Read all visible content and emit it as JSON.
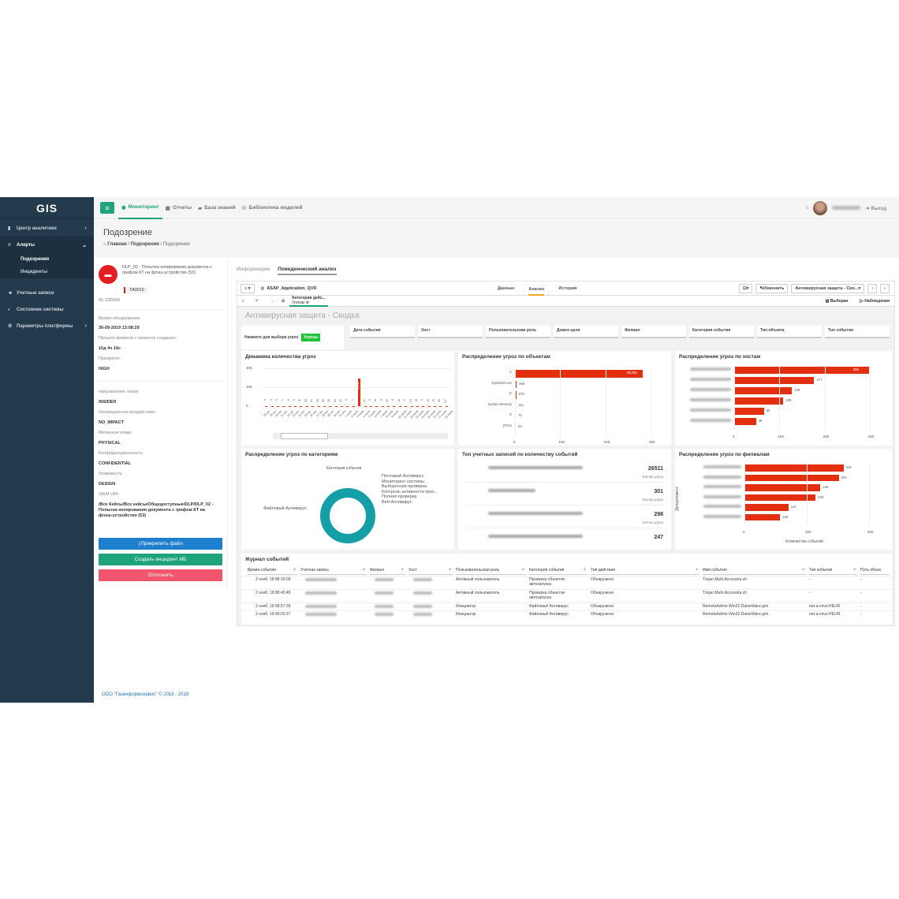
{
  "logo": "GIS",
  "sidebar": {
    "items": [
      {
        "label": "Центр аналитики",
        "icon": "bar-chart-icon"
      },
      {
        "label": "Алерты",
        "icon": "list-icon"
      },
      {
        "label": "Подозрения"
      },
      {
        "label": "Инциденты"
      },
      {
        "label": "Учетные записи",
        "icon": "users-icon"
      },
      {
        "label": "Состояние системы",
        "icon": "dashboard-icon"
      },
      {
        "label": "Параметры платформы",
        "icon": "cogs-icon"
      }
    ]
  },
  "topnav": {
    "items": [
      "Мониторинг",
      "Отчеты",
      "База знаний",
      "Библиотека моделей"
    ],
    "logout": "Выход"
  },
  "page": {
    "title": "Подозрение",
    "crumbs": [
      "Главная",
      "Подозрения",
      "Подозрение"
    ]
  },
  "alert": {
    "title": "DLP_02 - Попытка копирования документа с грифом КТ на флэш-устройство (53)",
    "tag": "TA0010",
    "id": "ID: 230034",
    "detect_label": "Время обнаружения:",
    "detect_value": "30-09-2019 13:08:29",
    "elapsed_label": "Прошло времени с момента создания:",
    "elapsed_value": "10д 4ч 16с",
    "priority_label": "Приоритет:",
    "priority_value": "HIGH",
    "direction_label": "Направление атаки:",
    "direction_value": "INSIDER",
    "impact_label": "Операционное воздействие:",
    "impact_value": "NO_IMPACT",
    "mechanism_label": "Механизм атаки:",
    "mechanism_value": "PHYSICAL",
    "conf_label": "Конфиденциальность:",
    "conf_value": "CONFIDENTIAL",
    "vuln_label": "Уязвимость:",
    "vuln_value": "DESIGN",
    "siem_label": "SIEM URI:",
    "siem_value": "/Все Кейсы/Все кейсы/Общедоступные/DLP/DLP_02 - Попытка копирования документа с грифом КТ на флэш-устройство (53)",
    "btn_attach": "Прикрепить файл",
    "btn_create": "Создать инцидент ИБ",
    "btn_reject": "Отклонить"
  },
  "tabs": {
    "info": "Информация",
    "behav": "Поведенческий анализ"
  },
  "qlik": {
    "app": "ASAP_Application_QVD",
    "tabs": [
      "Данные",
      "Анализ",
      "История"
    ],
    "edit": "Изменить",
    "sheet_select": "Антивирусная защита - Сво...",
    "selections": "Выборки",
    "insights": "Наблюдения",
    "sel_title": "Категория дейс...",
    "sel_sub": "Угрозы",
    "sheet_title": "Антивирусная защита - Сводка",
    "threat_btn_label": "Нажмите для выбора угроз",
    "threat_btn": "Угрозы",
    "filters": [
      "Дата события",
      "Хост",
      "Пользовательская роль",
      "Домен цели",
      "Филиал",
      "Категория события",
      "Тип объекта",
      "Тип события"
    ]
  },
  "chart_data": [
    {
      "type": "bar",
      "title": "Динамика количества угроз",
      "yticks": [
        "40K",
        "20K",
        "0"
      ],
      "ylim": [
        0,
        40000
      ],
      "categories": [
        "18 окт.",
        "19 окт.",
        "20 окт.",
        "21 окт.",
        "22 окт.",
        "23 окт.",
        "24 окт.",
        "25 окт.",
        "26 окт.",
        "27 окт.",
        "28 окт.",
        "29 окт.",
        "30 окт.",
        "31 окт.",
        "1 нояб.",
        "2 нояб.",
        "3 нояб.",
        "4 нояб.",
        "5 нояб.",
        "6 нояб.",
        "7 нояб.",
        "8 нояб.",
        "9 нояб.",
        "10 нояб.",
        "11 нояб.",
        "12 нояб.",
        "13 нояб.",
        "14 нояб.",
        "15 нояб.",
        "16 нояб.",
        "17 нояб.",
        "18 нояб."
      ],
      "values": [
        0,
        3,
        0,
        1,
        6,
        0,
        10,
        30,
        41,
        20,
        35,
        35,
        50,
        20,
        0,
        1,
        29110,
        41,
        0,
        16,
        0,
        52,
        0,
        18,
        0,
        174,
        13,
        0,
        44,
        75,
        66,
        117
      ],
      "labels": [
        "0",
        "3",
        "0",
        "1",
        "6",
        "0",
        "10",
        "30",
        "41",
        "20",
        "35",
        "35",
        "50",
        "20",
        "0",
        "1",
        "29110",
        "41",
        "0",
        "16",
        "0",
        "52",
        "0",
        "18",
        "0",
        "174",
        "13",
        "0",
        "44",
        "75",
        "66",
        "117"
      ]
    },
    {
      "type": "bar",
      "title": "Распределение угроз по объектам",
      "orientation": "horizontal",
      "categories": [
        "C",
        "Symlinks\\.exe",
        "E",
        "System Memory",
        "E",
        "[From"
      ],
      "values": [
        28236,
        368,
        279,
        211,
        73,
        22
      ],
      "labels": [
        "28,236",
        "368",
        "279",
        "211",
        "73",
        "22"
      ],
      "xticks": [
        "0",
        "10K",
        "20K",
        "30K"
      ],
      "xlim": [
        0,
        30000
      ]
    },
    {
      "type": "bar",
      "title": "Распределение угроз по хостам",
      "orientation": "horizontal",
      "values": [
        298,
        177,
        128,
        109,
        66,
        48
      ],
      "labels": [
        "298",
        "177",
        "128",
        "109",
        "66",
        "48"
      ],
      "xticks": [
        "0",
        "100",
        "200",
        "300"
      ],
      "xlim": [
        0,
        300
      ]
    },
    {
      "type": "pie",
      "title": "Распределение угроз по категориям",
      "legend_title": "Категория события",
      "categories": [
        "Почтовый Антивирус",
        "Мониторинг системы",
        "Выборочная проверка",
        "Контроль активности прог...",
        "Полная проверка",
        "Веб-Антивирус",
        "Файловый Антивирус"
      ]
    },
    {
      "type": "table",
      "title": "Топ учетных записей по количеству событий",
      "values": [
        "26511",
        "301",
        "298",
        "247"
      ],
      "sub": "Кол-во угроз"
    },
    {
      "type": "bar",
      "title": "Распределение угроз по филиалам",
      "orientation": "horizontal",
      "values": [
        318,
        303,
        244,
        228,
        141,
        115
      ],
      "labels": [
        "318",
        "303",
        "244",
        "228",
        "141",
        "115"
      ],
      "xticks": [
        "0",
        "200",
        "400"
      ],
      "xlim": [
        0,
        400
      ],
      "xlabel": "Количество событий",
      "ylabel": "Департамент"
    }
  ],
  "journal": {
    "title": "Журнал событий",
    "headers": [
      "Время события",
      "Учетная запись",
      "Филиал",
      "Хост",
      "Пользовательская роль",
      "Категория события",
      "Тип действия",
      "Имя события",
      "Тип события",
      "Путь объек"
    ],
    "rows": [
      [
        "2 нояб. 18 88:19:09",
        "",
        "",
        "",
        "Активный пользователь",
        "Проверка объектов автозапуска",
        "Обнаружено",
        "Trojan.Multi.Accesstra.sh",
        "-",
        "-"
      ],
      [
        "2 нояб. 18 88:45:48",
        "",
        "",
        "",
        "Активный пользователь",
        "Проверка объектов автозапуска",
        "Обнаружено",
        "Trojan.Multi.Accesstra.sh",
        "-",
        "-"
      ],
      [
        "2 нояб. 18 88:57:39",
        "",
        "",
        "",
        "Инициатор",
        "Файловый Антивирус",
        "Обнаружено",
        "RemoteAdmin.Win32.DameWare.gen",
        "not-a-virus:HEUR",
        "-"
      ],
      [
        "2 нояб. 18 89:03:37",
        "",
        "",
        "",
        "Инициатор",
        "Файловый Антивирус",
        "Обнаружено",
        "RemoteAdmin.Win32.DameWare.gen",
        "not-a-virus:HEUR",
        "-"
      ]
    ]
  },
  "footer": "ООО \"Газинформсервис\" © 2018 - 2019"
}
